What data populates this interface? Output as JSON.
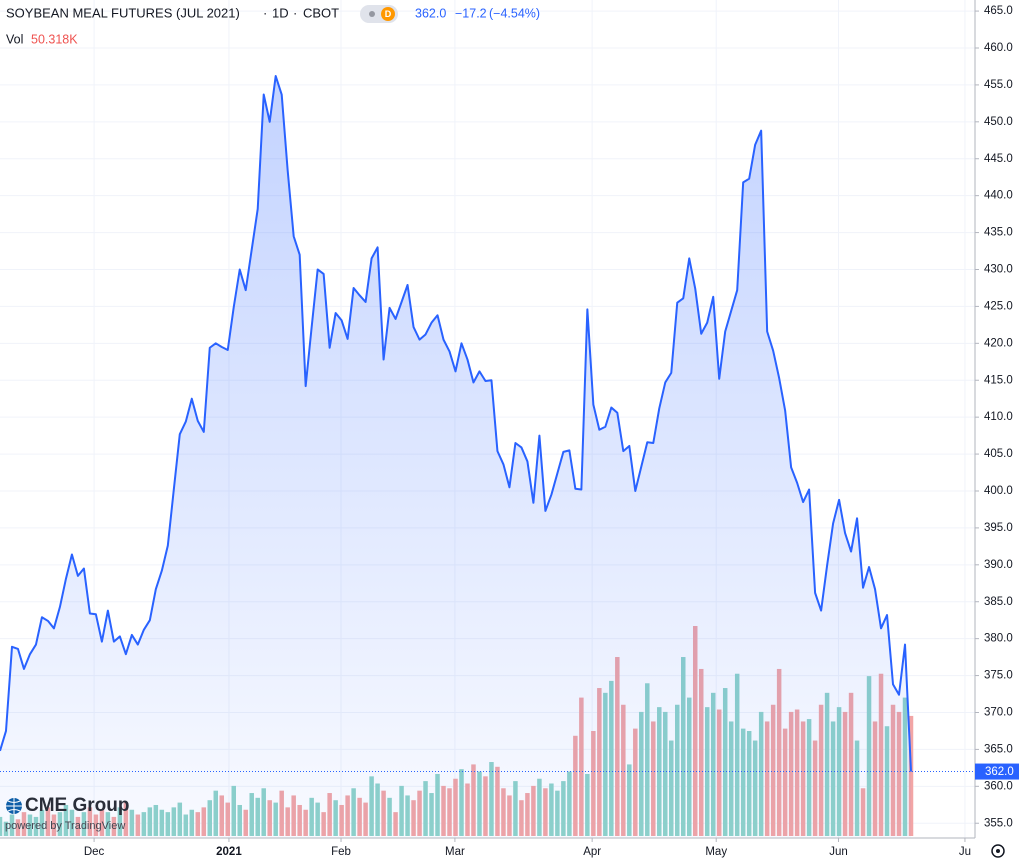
{
  "chart_data": {
    "type": "area",
    "title": "SOYBEAN MEAL FUTURES (JUL 2021)",
    "interval": "1D",
    "exchange": "CBOT",
    "badge": "D",
    "quote": {
      "price": "362.0",
      "change": "−17.2",
      "change_pct": "(−4.54%)"
    },
    "volume_title": "Vol",
    "volume_label": "50.318K",
    "branding": {
      "logo": "CME Group",
      "powered": "powered by TradingView"
    },
    "color": "#2962ff",
    "up_color": "#8fd3c9",
    "down_color": "#f2a5a5",
    "values": [
      364.8,
      367.5,
      378.9,
      378.6,
      375.9,
      377.9,
      379.2,
      382.9,
      382.4,
      381.4,
      384.3,
      388.1,
      391.4,
      388.5,
      389.5,
      383.4,
      383.3,
      379.6,
      383.8,
      379.6,
      380.3,
      377.9,
      380.5,
      379.2,
      381.2,
      382.5,
      386.7,
      389.2,
      392.6,
      400.2,
      407.7,
      409.4,
      412.5,
      409.5,
      408.0,
      419.4,
      420.0,
      419.5,
      419.1,
      424.9,
      430.0,
      427.2,
      432.7,
      438.2,
      453.7,
      450.0,
      456.2,
      453.7,
      443.4,
      434.5,
      432.0,
      414.2,
      422.2,
      430.0,
      429.4,
      419.4,
      424.1,
      423.1,
      420.6,
      427.5,
      426.5,
      425.6,
      431.5,
      433.0,
      417.8,
      424.8,
      423.3,
      425.6,
      427.9,
      422.2,
      420.5,
      421.2,
      422.8,
      423.8,
      420.5,
      418.9,
      416.2,
      420.0,
      417.8,
      414.7,
      416.2,
      414.9,
      415.0,
      405.4,
      403.6,
      400.5,
      406.5,
      405.9,
      404.0,
      398.4,
      407.5,
      397.3,
      399.5,
      402.4,
      405.3,
      405.5,
      400.3,
      400.2,
      424.6,
      411.7,
      408.3,
      408.7,
      411.3,
      410.6,
      405.4,
      406.1,
      400.0,
      403.3,
      406.6,
      406.5,
      411.2,
      414.7,
      416.0,
      425.5,
      426.1,
      431.5,
      427.4,
      421.3,
      422.8,
      426.3,
      415.2,
      421.6,
      424.4,
      427.2,
      441.8,
      442.3,
      446.9,
      448.8,
      421.6,
      419.0,
      415.3,
      410.9,
      403.2,
      401.1,
      398.5,
      400.2,
      386.2,
      383.8,
      389.9,
      395.6,
      398.8,
      394.3,
      391.8,
      396.3,
      386.9,
      389.7,
      386.7,
      381.4,
      383.2,
      373.8,
      372.4,
      379.2,
      362.0
    ],
    "volume": [
      8,
      6,
      9,
      7,
      10,
      9,
      8,
      11,
      12,
      9,
      10,
      13,
      11,
      8,
      10,
      12,
      9,
      11,
      10,
      8,
      12,
      14,
      11,
      9,
      10,
      12,
      13,
      11,
      10,
      12,
      14,
      9,
      11,
      10,
      12,
      15,
      19,
      17,
      14,
      21,
      13,
      11,
      18,
      16,
      20,
      15,
      14,
      19,
      12,
      17,
      13,
      11,
      16,
      14,
      10,
      18,
      15,
      13,
      17,
      20,
      16,
      14,
      25,
      22,
      19,
      16,
      10,
      21,
      17,
      15,
      19,
      23,
      18,
      26,
      21,
      20,
      24,
      28,
      22,
      30,
      27,
      25,
      31,
      29,
      20,
      17,
      23,
      15,
      18,
      21,
      24,
      20,
      22,
      19,
      23,
      27,
      42,
      58,
      26,
      44,
      62,
      60,
      65,
      75,
      55,
      30,
      45,
      52,
      64,
      48,
      54,
      52,
      40,
      55,
      75,
      58,
      88,
      70,
      54,
      60,
      53,
      62,
      48,
      68,
      45,
      44,
      40,
      52,
      48,
      55,
      70,
      45,
      52,
      53,
      48,
      49,
      40,
      55,
      60,
      48,
      54,
      52,
      60,
      40,
      20,
      67,
      48,
      68,
      46,
      55,
      52,
      58,
      50.318
    ],
    "ylim": [
      353,
      466.5
    ],
    "yticks": [
      {
        "value": 355,
        "label": "355.0"
      },
      {
        "value": 360,
        "label": "360.0"
      },
      {
        "value": 365,
        "label": "365.0"
      },
      {
        "value": 370,
        "label": "370.0"
      },
      {
        "value": 375,
        "label": "375.0"
      },
      {
        "value": 380,
        "label": "380.0"
      },
      {
        "value": 385,
        "label": "385.0"
      },
      {
        "value": 390,
        "label": "390.0"
      },
      {
        "value": 395,
        "label": "395.0"
      },
      {
        "value": 400,
        "label": "400.0"
      },
      {
        "value": 405,
        "label": "405.0"
      },
      {
        "value": 410,
        "label": "410.0"
      },
      {
        "value": 415,
        "label": "415.0"
      },
      {
        "value": 420,
        "label": "420.0"
      },
      {
        "value": 425,
        "label": "425.0"
      },
      {
        "value": 430,
        "label": "430.0"
      },
      {
        "value": 435,
        "label": "435.0"
      },
      {
        "value": 440,
        "label": "440.0"
      },
      {
        "value": 445,
        "label": "445.0"
      },
      {
        "value": 450,
        "label": "450.0"
      },
      {
        "value": 455,
        "label": "455.0"
      },
      {
        "value": 460,
        "label": "460.0"
      },
      {
        "value": 465,
        "label": "465.0"
      }
    ],
    "xticks": [
      {
        "value": 15.7,
        "label": "Dec"
      },
      {
        "value": 38.2,
        "label": "2021"
      },
      {
        "value": 56.9,
        "label": "Feb"
      },
      {
        "value": 75.9,
        "label": "Mar"
      },
      {
        "value": 98.8,
        "label": "Apr"
      },
      {
        "value": 119.5,
        "label": "May"
      },
      {
        "value": 139.9,
        "label": "Jun"
      },
      {
        "value": 161,
        "label": "Ju"
      }
    ],
    "grid": true
  }
}
